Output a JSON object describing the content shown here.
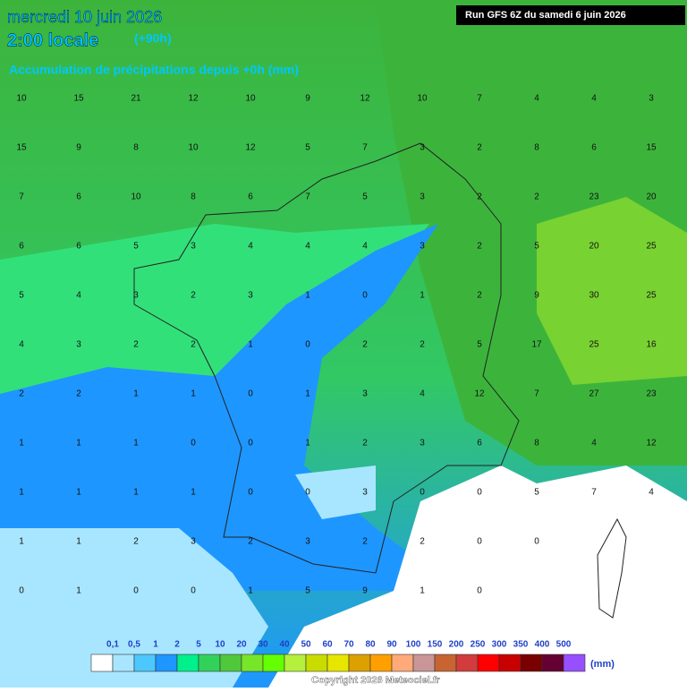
{
  "header": {
    "date": "mercredi 10 juin 2026",
    "time": "2:00 locale",
    "lead": "(+90h)",
    "subtitle": "Accumulation de précipitations depuis +0h (mm)",
    "run": "Run GFS 6Z du samedi 6 juin 2026"
  },
  "grid": {
    "rows": [
      [
        10,
        15,
        21,
        12,
        10,
        9,
        12,
        10,
        7,
        4,
        4,
        3
      ],
      [
        15,
        9,
        8,
        10,
        12,
        5,
        7,
        3,
        2,
        8,
        6,
        15
      ],
      [
        7,
        6,
        10,
        8,
        6,
        7,
        5,
        3,
        2,
        2,
        23,
        20
      ],
      [
        6,
        6,
        5,
        3,
        4,
        4,
        4,
        3,
        2,
        5,
        20,
        25
      ],
      [
        5,
        4,
        3,
        2,
        3,
        1,
        0,
        1,
        2,
        9,
        30,
        25
      ],
      [
        4,
        3,
        2,
        2,
        1,
        0,
        2,
        2,
        5,
        17,
        25,
        16
      ],
      [
        2,
        2,
        1,
        1,
        0,
        1,
        3,
        4,
        12,
        7,
        27,
        23
      ],
      [
        1,
        1,
        1,
        0,
        0,
        1,
        2,
        3,
        6,
        8,
        4,
        12
      ],
      [
        1,
        1,
        1,
        1,
        0,
        0,
        3,
        0,
        0,
        5,
        7,
        4
      ],
      [
        1,
        1,
        2,
        3,
        2,
        3,
        2,
        2,
        0,
        0
      ],
      [
        0,
        1,
        0,
        0,
        1,
        5,
        9,
        1,
        0
      ]
    ]
  },
  "legend": {
    "labels": [
      "0,1",
      "0,5",
      "1",
      "2",
      "5",
      "10",
      "20",
      "30",
      "40",
      "50",
      "60",
      "70",
      "80",
      "90",
      "100",
      "150",
      "200",
      "250",
      "300",
      "350",
      "400",
      "500"
    ],
    "colors": [
      "#ffffff",
      "#a8e6ff",
      "#4cc8ff",
      "#1e96ff",
      "#00f08c",
      "#32d25a",
      "#50c83c",
      "#78e628",
      "#64ff00",
      "#b4f03c",
      "#c8dc00",
      "#e6e600",
      "#dca000",
      "#ffa000",
      "#ffaa78",
      "#c89696",
      "#c86432",
      "#d23c3c",
      "#ff0000",
      "#c80000",
      "#780000",
      "#640032",
      "#9650ff"
    ],
    "unit": "(mm)"
  },
  "footer": "Copyright 2026 Meteociel.fr"
}
